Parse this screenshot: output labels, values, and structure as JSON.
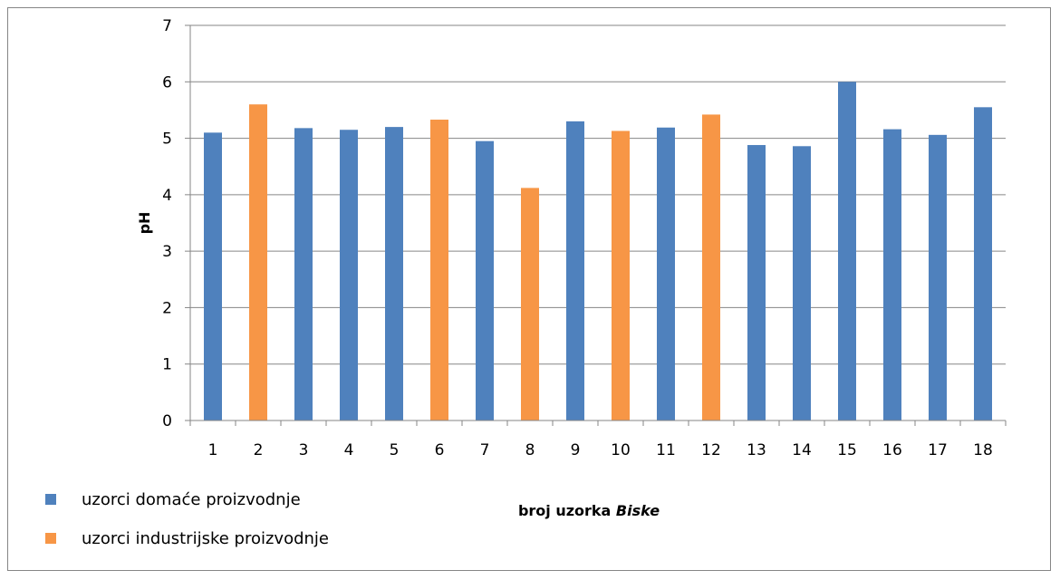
{
  "chart_data": {
    "type": "bar",
    "title": "",
    "ylabel": "pH",
    "xlabel_main": "broj uzorka ",
    "xlabel_italic": "Biske",
    "ylim": [
      0,
      7
    ],
    "yticks": [
      0,
      1,
      2,
      3,
      4,
      5,
      6,
      7
    ],
    "grid": true,
    "categories": [
      "1",
      "2",
      "3",
      "4",
      "5",
      "6",
      "7",
      "8",
      "9",
      "10",
      "11",
      "12",
      "13",
      "14",
      "15",
      "16",
      "17",
      "18"
    ],
    "values": [
      5.1,
      5.6,
      5.18,
      5.15,
      5.2,
      5.33,
      4.95,
      4.12,
      5.3,
      5.13,
      5.19,
      5.42,
      4.88,
      4.86,
      6.0,
      5.16,
      5.06,
      5.55
    ],
    "bar_series": [
      "domace",
      "industrijske",
      "domace",
      "domace",
      "domace",
      "industrijske",
      "domace",
      "industrijske",
      "domace",
      "industrijske",
      "domace",
      "industrijske",
      "domace",
      "domace",
      "domace",
      "domace",
      "domace",
      "domace"
    ],
    "legend_position": "bottom-left",
    "series": [
      {
        "key": "domace",
        "name": "uzorci domaće proizvodnje",
        "color": "#4F81BD"
      },
      {
        "key": "industrijske",
        "name": "uzorci industrijske proizvodnje",
        "color": "#F79646"
      }
    ]
  }
}
